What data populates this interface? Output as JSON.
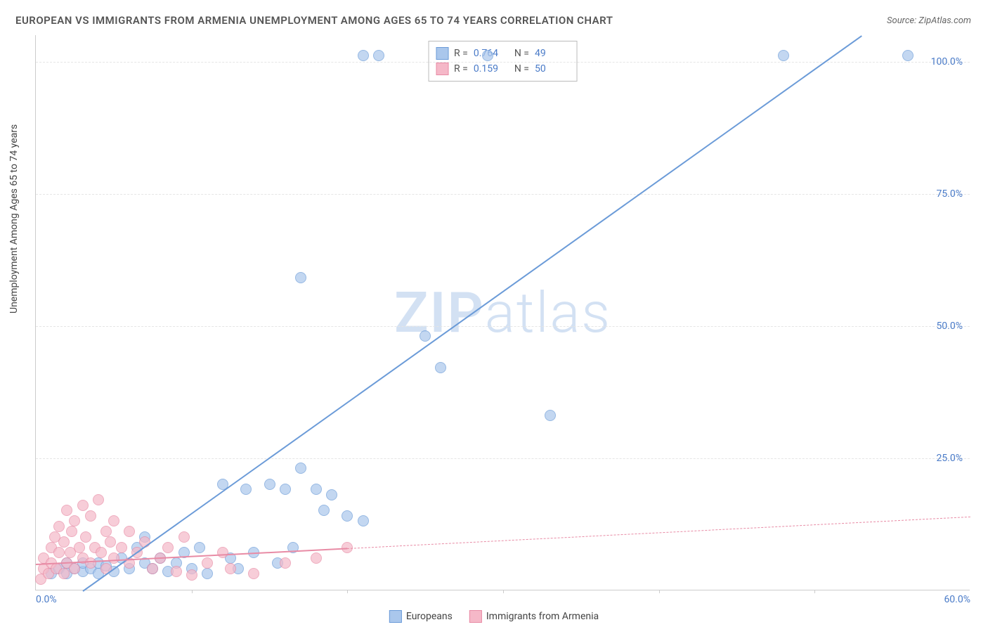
{
  "title": "EUROPEAN VS IMMIGRANTS FROM ARMENIA UNEMPLOYMENT AMONG AGES 65 TO 74 YEARS CORRELATION CHART",
  "source": "Source: ZipAtlas.com",
  "y_axis_label": "Unemployment Among Ages 65 to 74 years",
  "watermark": {
    "bold": "ZIP",
    "rest": "atlas"
  },
  "chart": {
    "type": "scatter",
    "xlim": [
      0,
      60
    ],
    "ylim": [
      0,
      105
    ],
    "x_ticks": [
      {
        "v": 0,
        "l": "0.0%"
      },
      {
        "v": 60,
        "l": "60.0%"
      }
    ],
    "y_ticks": [
      {
        "v": 25,
        "l": "25.0%"
      },
      {
        "v": 50,
        "l": "50.0%"
      },
      {
        "v": 75,
        "l": "75.0%"
      },
      {
        "v": 100,
        "l": "100.0%"
      }
    ],
    "v_ticks": [
      10,
      20,
      30,
      40,
      50
    ],
    "grid_color": "#e5e5e5",
    "background_color": "#ffffff",
    "point_radius": 8,
    "series": [
      {
        "name": "Europeans",
        "color_fill": "#aac7ec",
        "color_stroke": "#6b9bd8",
        "R": "0.764",
        "N": "49",
        "trend": {
          "x1": 3,
          "y1": 0,
          "x2": 53,
          "y2": 105,
          "dash": false,
          "width": 2.5,
          "extend_dash": false
        },
        "points": [
          [
            1,
            3
          ],
          [
            1.5,
            4
          ],
          [
            2,
            3
          ],
          [
            2,
            5
          ],
          [
            2.5,
            4
          ],
          [
            3,
            3.5
          ],
          [
            3,
            5
          ],
          [
            3.5,
            4
          ],
          [
            4,
            3
          ],
          [
            4,
            5
          ],
          [
            4.5,
            4.5
          ],
          [
            5,
            3.5
          ],
          [
            5.5,
            6
          ],
          [
            6,
            4
          ],
          [
            6.5,
            8
          ],
          [
            7,
            5
          ],
          [
            7.5,
            4
          ],
          [
            8,
            6
          ],
          [
            8.5,
            3.5
          ],
          [
            7,
            10
          ],
          [
            9,
            5
          ],
          [
            9.5,
            7
          ],
          [
            10,
            4
          ],
          [
            10.5,
            8
          ],
          [
            11,
            3
          ],
          [
            12,
            20
          ],
          [
            12.5,
            6
          ],
          [
            13,
            4
          ],
          [
            13.5,
            19
          ],
          [
            14,
            7
          ],
          [
            15,
            20
          ],
          [
            15.5,
            5
          ],
          [
            16,
            19
          ],
          [
            16.5,
            8
          ],
          [
            17,
            23
          ],
          [
            18,
            19
          ],
          [
            18.5,
            15
          ],
          [
            19,
            18
          ],
          [
            20,
            14
          ],
          [
            21,
            13
          ],
          [
            17,
            59
          ],
          [
            21,
            101
          ],
          [
            22,
            101
          ],
          [
            25,
            48
          ],
          [
            26,
            42
          ],
          [
            29,
            101
          ],
          [
            33,
            33
          ],
          [
            48,
            101
          ],
          [
            56,
            101
          ]
        ]
      },
      {
        "name": "Immigrants from Armenia",
        "color_fill": "#f5b8c8",
        "color_stroke": "#e88ba5",
        "R": "0.159",
        "N": "50",
        "trend": {
          "x1": 0,
          "y1": 5,
          "x2": 20,
          "y2": 8,
          "dash": false,
          "width": 2.5,
          "extend_dash": true,
          "dash_to_x": 60,
          "dash_to_y": 14
        },
        "points": [
          [
            0.3,
            2
          ],
          [
            0.5,
            4
          ],
          [
            0.5,
            6
          ],
          [
            0.8,
            3
          ],
          [
            1,
            5
          ],
          [
            1,
            8
          ],
          [
            1.2,
            10
          ],
          [
            1.3,
            4
          ],
          [
            1.5,
            7
          ],
          [
            1.5,
            12
          ],
          [
            1.8,
            3
          ],
          [
            1.8,
            9
          ],
          [
            2,
            5
          ],
          [
            2,
            15
          ],
          [
            2.2,
            7
          ],
          [
            2.3,
            11
          ],
          [
            2.5,
            4
          ],
          [
            2.5,
            13
          ],
          [
            2.8,
            8
          ],
          [
            3,
            6
          ],
          [
            3,
            16
          ],
          [
            3.2,
            10
          ],
          [
            3.5,
            5
          ],
          [
            3.5,
            14
          ],
          [
            3.8,
            8
          ],
          [
            4,
            17
          ],
          [
            4.2,
            7
          ],
          [
            4.5,
            11
          ],
          [
            4.5,
            4
          ],
          [
            4.8,
            9
          ],
          [
            5,
            6
          ],
          [
            5,
            13
          ],
          [
            5.5,
            8
          ],
          [
            6,
            5
          ],
          [
            6,
            11
          ],
          [
            6.5,
            7
          ],
          [
            7,
            9
          ],
          [
            7.5,
            4
          ],
          [
            8,
            6
          ],
          [
            8.5,
            8
          ],
          [
            9,
            3.5
          ],
          [
            9.5,
            10
          ],
          [
            10,
            2.8
          ],
          [
            11,
            5
          ],
          [
            12,
            7
          ],
          [
            12.5,
            4
          ],
          [
            14,
            3
          ],
          [
            16,
            5
          ],
          [
            18,
            6
          ],
          [
            20,
            8
          ]
        ]
      }
    ]
  },
  "bottom_legend": [
    {
      "label": "Europeans",
      "fill": "#aac7ec",
      "stroke": "#6b9bd8"
    },
    {
      "label": "Immigrants from Armenia",
      "fill": "#f5b8c8",
      "stroke": "#e88ba5"
    }
  ]
}
